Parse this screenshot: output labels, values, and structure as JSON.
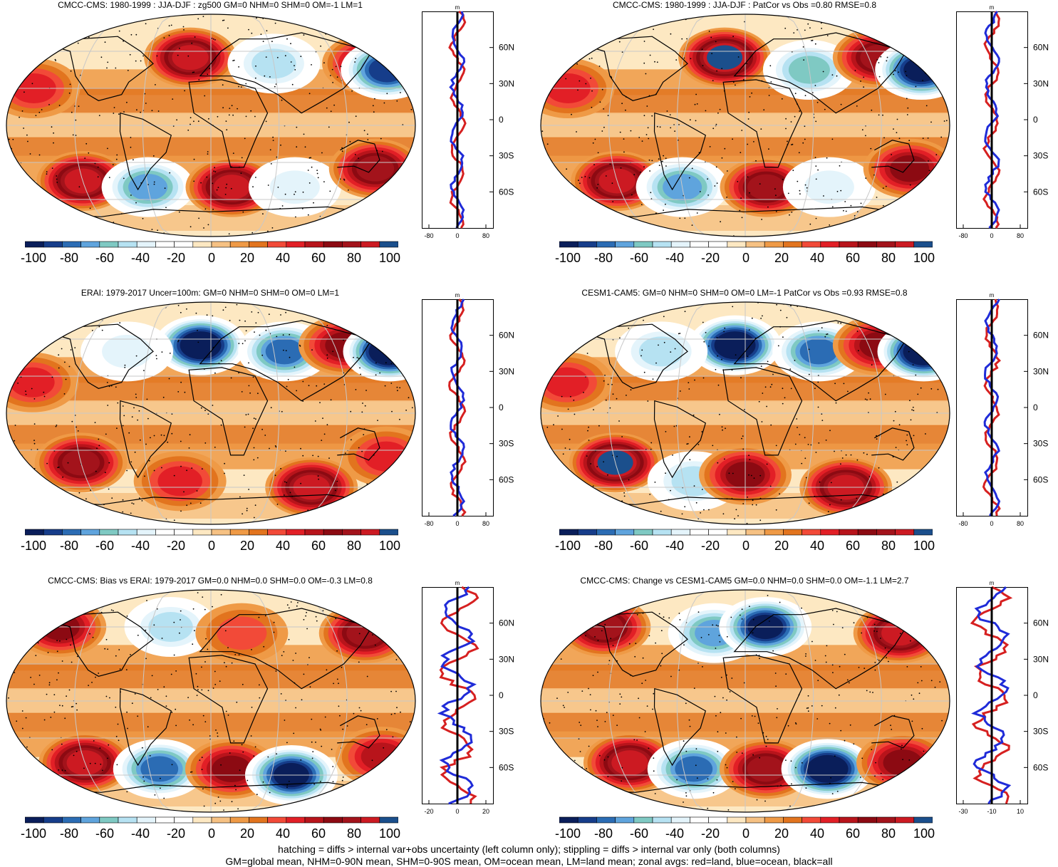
{
  "colors": {
    "palette": [
      "#0a1e5a",
      "#163d8a",
      "#2b6cb4",
      "#5fa4dd",
      "#7fc9c3",
      "#b6e2f2",
      "#e4f4fb",
      "#ffffff",
      "#ffffff",
      "#fde8c2",
      "#f6c183",
      "#ef9a46",
      "#e2741e",
      "#f24a38",
      "#e21f26",
      "#b8141b",
      "#8c0a12",
      "#a3131b",
      "#cc1a22",
      "#1b4f8c"
    ],
    "land": "#d62020",
    "ocean": "#1f2bd8",
    "all": "#000000"
  },
  "colorbar": {
    "labels": [
      "-100",
      "-80",
      "-60",
      "-40",
      "-20",
      "0",
      "20",
      "40",
      "60",
      "80",
      "100"
    ]
  },
  "panels": [
    {
      "title": "CMCC-CMS: 1980-1999 : JJA-DJF : zg500 GM=0 NHM=0 SHM=0 OM=-1 LM=1",
      "zonal_unit": "m",
      "zonal_xticks": [
        "-80",
        "0",
        "80"
      ],
      "zonal_yticks": [
        "60N",
        "30N",
        "0",
        "30S",
        "60S"
      ],
      "blobs": [
        {
          "lon": -20,
          "lat": 55,
          "val": 80
        },
        {
          "lon": 60,
          "lat": 50,
          "val": -40
        },
        {
          "lon": 150,
          "lat": 50,
          "val": 60
        },
        {
          "lon": 165,
          "lat": 45,
          "val": -80
        },
        {
          "lon": -160,
          "lat": 30,
          "val": 40
        },
        {
          "lon": -120,
          "lat": -45,
          "val": 80
        },
        {
          "lon": -60,
          "lat": -50,
          "val": -60
        },
        {
          "lon": 20,
          "lat": -50,
          "val": 80
        },
        {
          "lon": 80,
          "lat": -50,
          "val": -30
        },
        {
          "lon": 150,
          "lat": -35,
          "val": 70
        }
      ]
    },
    {
      "title": "CMCC-CMS: 1980-1999 : JJA-DJF : PatCor vs Obs =0.80 RMSE=0.8",
      "zonal_unit": "m",
      "zonal_xticks": [
        "-80",
        "0",
        "80"
      ],
      "zonal_yticks": [
        "60N",
        "30N",
        "0",
        "30S",
        "60S"
      ],
      "blobs": [
        {
          "lon": -20,
          "lat": 55,
          "val": 90
        },
        {
          "lon": 60,
          "lat": 45,
          "val": -50
        },
        {
          "lon": 130,
          "lat": 55,
          "val": 70
        },
        {
          "lon": 165,
          "lat": 45,
          "val": -90
        },
        {
          "lon": -160,
          "lat": 30,
          "val": 40
        },
        {
          "lon": -120,
          "lat": -45,
          "val": 80
        },
        {
          "lon": -60,
          "lat": -50,
          "val": -60
        },
        {
          "lon": 20,
          "lat": -50,
          "val": 70
        },
        {
          "lon": 80,
          "lat": -50,
          "val": -30
        },
        {
          "lon": 150,
          "lat": -35,
          "val": 60
        }
      ]
    },
    {
      "title": "ERAI: 1979-2017 Uncer=100m: GM=0 NHM=0 SHM=0 OM=0 LM=1",
      "zonal_unit": "m",
      "zonal_xticks": [
        "-80",
        "0",
        "80"
      ],
      "zonal_yticks": [
        "60N",
        "30N",
        "0",
        "30S",
        "60S"
      ],
      "blobs": [
        {
          "lon": -10,
          "lat": 55,
          "val": -100
        },
        {
          "lon": -80,
          "lat": 50,
          "val": -30
        },
        {
          "lon": 70,
          "lat": 50,
          "val": -70
        },
        {
          "lon": 130,
          "lat": 55,
          "val": 60
        },
        {
          "lon": 170,
          "lat": 50,
          "val": -100
        },
        {
          "lon": -160,
          "lat": 25,
          "val": 40
        },
        {
          "lon": -120,
          "lat": -40,
          "val": 70
        },
        {
          "lon": -30,
          "lat": -55,
          "val": 40
        },
        {
          "lon": 100,
          "lat": -60,
          "val": 80
        },
        {
          "lon": 160,
          "lat": -35,
          "val": 40
        }
      ]
    },
    {
      "title": "CESM1-CAM5: GM=0 NHM=0 SHM=0 OM=0 LM=-1 PatCor vs Obs =0.93 RMSE=0.8",
      "zonal_unit": "m",
      "zonal_xticks": [
        "-80",
        "0",
        "80"
      ],
      "zonal_yticks": [
        "60N",
        "30N",
        "0",
        "30S",
        "60S"
      ],
      "blobs": [
        {
          "lon": -10,
          "lat": 55,
          "val": -100
        },
        {
          "lon": -80,
          "lat": 50,
          "val": -40
        },
        {
          "lon": 70,
          "lat": 50,
          "val": -70
        },
        {
          "lon": 130,
          "lat": 55,
          "val": 60
        },
        {
          "lon": 170,
          "lat": 50,
          "val": -100
        },
        {
          "lon": -160,
          "lat": 25,
          "val": 40
        },
        {
          "lon": -120,
          "lat": -40,
          "val": 90
        },
        {
          "lon": -50,
          "lat": -55,
          "val": -40
        },
        {
          "lon": 0,
          "lat": -50,
          "val": 60
        },
        {
          "lon": 100,
          "lat": -60,
          "val": 80
        }
      ]
    },
    {
      "title": "CMCC-CMS: Bias vs ERAI: 1979-2017 GM=0.0 NHM=0.0 SHM=0.0 OM=-0.3 LM=0.8",
      "zonal_unit": "m",
      "zonal_xticks": [
        "-20",
        "0",
        "20"
      ],
      "zonal_yticks": [
        "60N",
        "30N",
        "0",
        "30S",
        "60S"
      ],
      "blobs": [
        {
          "lon": -150,
          "lat": 60,
          "val": 60
        },
        {
          "lon": -40,
          "lat": 60,
          "val": -40
        },
        {
          "lon": 30,
          "lat": 55,
          "val": 30
        },
        {
          "lon": 150,
          "lat": 55,
          "val": 70
        },
        {
          "lon": -120,
          "lat": -50,
          "val": 80
        },
        {
          "lon": -50,
          "lat": -55,
          "val": -70
        },
        {
          "lon": 20,
          "lat": -55,
          "val": 60
        },
        {
          "lon": 80,
          "lat": -60,
          "val": -90
        },
        {
          "lon": 160,
          "lat": -45,
          "val": 50
        }
      ]
    },
    {
      "title": "CMCC-CMS: Change vs CESM1-CAM5 GM=0.0 NHM=0.0 SHM=0.0 OM=-1.1 LM=2.7",
      "zonal_unit": "m",
      "zonal_xticks": [
        "-30",
        "-10",
        "10"
      ],
      "zonal_yticks": [
        "60N",
        "30N",
        "0",
        "30S",
        "60S"
      ],
      "blobs": [
        {
          "lon": -140,
          "lat": 60,
          "val": 70
        },
        {
          "lon": -30,
          "lat": 55,
          "val": -60
        },
        {
          "lon": 20,
          "lat": 60,
          "val": -90
        },
        {
          "lon": 150,
          "lat": 55,
          "val": 80
        },
        {
          "lon": -110,
          "lat": -50,
          "val": 80
        },
        {
          "lon": -50,
          "lat": -55,
          "val": -70
        },
        {
          "lon": 20,
          "lat": -55,
          "val": 70
        },
        {
          "lon": 80,
          "lat": -55,
          "val": -100
        },
        {
          "lon": 150,
          "lat": -50,
          "val": 60
        }
      ]
    }
  ],
  "footer": {
    "line1": "hatching = diffs > internal var+obs uncertainty (left column only); stippling = diffs > internal var only (both columns)",
    "line2": "GM=global mean, NHM=0-90N mean, SHM=0-90S mean, OM=ocean mean, LM=land mean; zonal avgs: red=land, blue=ocean, black=all"
  },
  "chart_data": [
    {
      "type": "heatmap",
      "title": "CMCC-CMS: 1980-1999 : JJA-DJF : zg500 GM=0 NHM=0 SHM=0 OM=-1 LM=1",
      "colorbar": [
        -100,
        100
      ]
    },
    {
      "type": "heatmap",
      "title": "CMCC-CMS: 1980-1999 : JJA-DJF : PatCor vs Obs =0.80 RMSE=0.8",
      "colorbar": [
        -100,
        100
      ]
    },
    {
      "type": "heatmap",
      "title": "ERAI: 1979-2017 Uncer=100m: GM=0 NHM=0 SHM=0 OM=0 LM=1",
      "colorbar": [
        -100,
        100
      ]
    },
    {
      "type": "heatmap",
      "title": "CESM1-CAM5: GM=0 NHM=0 SHM=0 OM=0 LM=-1 PatCor vs Obs =0.93 RMSE=0.8",
      "colorbar": [
        -100,
        100
      ]
    },
    {
      "type": "heatmap",
      "title": "CMCC-CMS: Bias vs ERAI: 1979-2017 GM=0.0 NHM=0.0 SHM=0.0 OM=-0.3 LM=0.8",
      "colorbar": [
        -100,
        100
      ]
    },
    {
      "type": "heatmap",
      "title": "CMCC-CMS: Change vs CESM1-CAM5 GM=0.0 NHM=0.0 SHM=0.0 OM=-1.1 LM=2.7",
      "colorbar": [
        -100,
        100
      ]
    }
  ]
}
